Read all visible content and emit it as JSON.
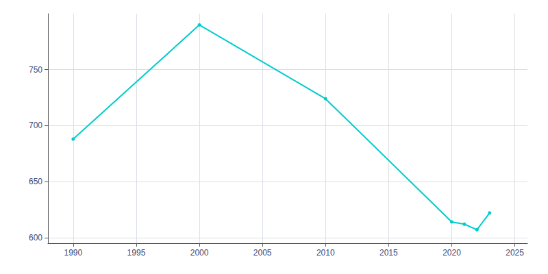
{
  "chart_data": {
    "type": "line",
    "x": [
      1990,
      2000,
      2010,
      2020,
      2021,
      2022,
      2023
    ],
    "values": [
      688,
      790,
      724,
      614,
      612,
      607,
      622
    ],
    "color": "#00CCCC",
    "marker": "circle",
    "xlim": [
      1988,
      2026
    ],
    "xticks": [
      1990,
      1995,
      2000,
      2005,
      2010,
      2015,
      2020,
      2025
    ],
    "ylim": [
      595,
      800
    ],
    "yticks": [
      600,
      650,
      700,
      750
    ],
    "grid": true
  }
}
